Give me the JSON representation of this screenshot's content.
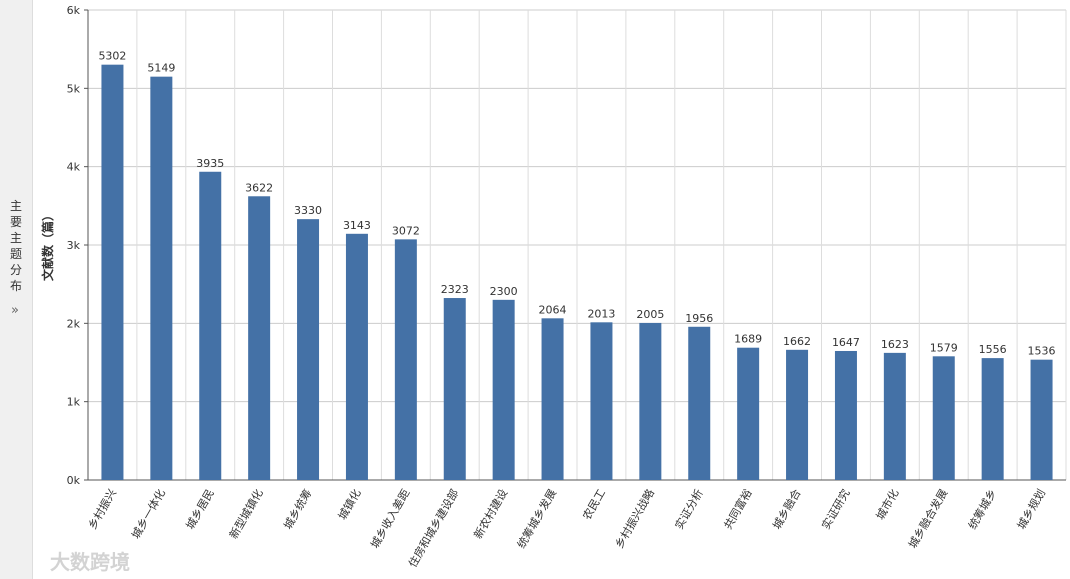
{
  "sidebar": {
    "title": "主要主题分布",
    "toggle": "»"
  },
  "watermark": "大数跨境",
  "chart_data": {
    "type": "bar",
    "y_label": "文献数（篇）",
    "categories": [
      "乡村振兴",
      "城乡一体化",
      "城乡居民",
      "新型城镇化",
      "城乡统筹",
      "城镇化",
      "城乡收入差距",
      "住房和城乡建设部",
      "新农村建设",
      "统筹城乡发展",
      "农民工",
      "乡村振兴战略",
      "实证分析",
      "共同富裕",
      "城乡融合",
      "实证研究",
      "城市化",
      "城乡融合发展",
      "统筹城乡",
      "城乡规划"
    ],
    "values": [
      5302,
      5149,
      3935,
      3622,
      3330,
      3143,
      3072,
      2323,
      2300,
      2064,
      2013,
      2005,
      1956,
      1689,
      1662,
      1647,
      1623,
      1579,
      1556,
      1536
    ],
    "color": "#4471a6",
    "ylim": [
      0,
      6000
    ],
    "yticks": [
      {
        "value": 0,
        "label": "0k"
      },
      {
        "value": 1000,
        "label": "1k"
      },
      {
        "value": 2000,
        "label": "2k"
      },
      {
        "value": 3000,
        "label": "3k"
      },
      {
        "value": 4000,
        "label": "4k"
      },
      {
        "value": 5000,
        "label": "5k"
      },
      {
        "value": 6000,
        "label": "6k"
      }
    ],
    "grid": true
  }
}
